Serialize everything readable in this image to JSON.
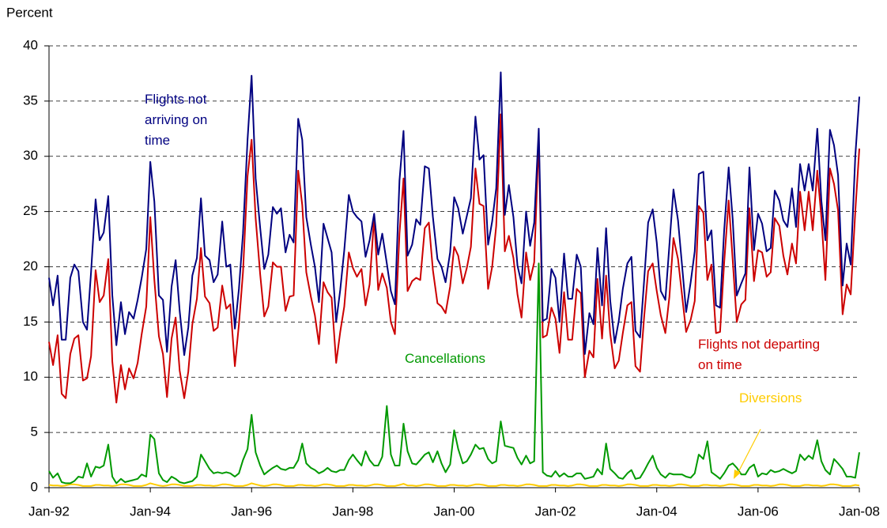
{
  "chart_data": {
    "type": "line",
    "y_label": "Percent",
    "xlim": [
      1992,
      2008
    ],
    "xticks": [
      {
        "value": 1992,
        "label": "Jan-92"
      },
      {
        "value": 1994,
        "label": "Jan-94"
      },
      {
        "value": 1996,
        "label": "Jan-96"
      },
      {
        "value": 1998,
        "label": "Jan-98"
      },
      {
        "value": 2000,
        "label": "Jan-00"
      },
      {
        "value": 2002,
        "label": "Jan-02"
      },
      {
        "value": 2004,
        "label": "Jan-04"
      },
      {
        "value": 2006,
        "label": "Jan-06"
      },
      {
        "value": 2008,
        "label": "Jan-08"
      }
    ],
    "ylim": [
      0,
      40
    ],
    "yticks": [
      0,
      5,
      10,
      15,
      20,
      25,
      30,
      35,
      40
    ],
    "grid": true,
    "x": [
      1992,
      1992.08,
      1992.17,
      1992.25,
      1992.33,
      1992.42,
      1992.5,
      1992.58,
      1992.67,
      1992.75,
      1992.83,
      1992.92,
      1993,
      1993.08,
      1993.17,
      1993.25,
      1993.33,
      1993.42,
      1993.5,
      1993.58,
      1993.67,
      1993.75,
      1993.83,
      1993.92,
      1994,
      1994.08,
      1994.17,
      1994.25,
      1994.33,
      1994.42,
      1994.5,
      1994.58,
      1994.67,
      1994.75,
      1994.83,
      1994.92,
      1995,
      1995.08,
      1995.17,
      1995.25,
      1995.33,
      1995.42,
      1995.5,
      1995.58,
      1995.67,
      1995.75,
      1995.83,
      1995.92,
      1996,
      1996.08,
      1996.17,
      1996.25,
      1996.33,
      1996.42,
      1996.5,
      1996.58,
      1996.67,
      1996.75,
      1996.83,
      1996.92,
      1997,
      1997.08,
      1997.17,
      1997.25,
      1997.33,
      1997.42,
      1997.5,
      1997.58,
      1997.67,
      1997.75,
      1997.83,
      1997.92,
      1998,
      1998.08,
      1998.17,
      1998.25,
      1998.33,
      1998.42,
      1998.5,
      1998.58,
      1998.67,
      1998.75,
      1998.83,
      1998.92,
      1999,
      1999.08,
      1999.17,
      1999.25,
      1999.33,
      1999.42,
      1999.5,
      1999.58,
      1999.67,
      1999.75,
      1999.83,
      1999.92,
      2000,
      2000.08,
      2000.17,
      2000.25,
      2000.33,
      2000.42,
      2000.5,
      2000.58,
      2000.67,
      2000.75,
      2000.83,
      2000.92,
      2001,
      2001.08,
      2001.17,
      2001.25,
      2001.33,
      2001.42,
      2001.5,
      2001.58,
      2001.67,
      2001.75,
      2001.83,
      2001.92,
      2002,
      2002.08,
      2002.17,
      2002.25,
      2002.33,
      2002.42,
      2002.5,
      2002.58,
      2002.67,
      2002.75,
      2002.83,
      2002.92,
      2003,
      2003.08,
      2003.17,
      2003.25,
      2003.33,
      2003.42,
      2003.5,
      2003.58,
      2003.67,
      2003.75,
      2003.83,
      2003.92,
      2004,
      2004.08,
      2004.17,
      2004.25,
      2004.33,
      2004.42,
      2004.5,
      2004.58,
      2004.67,
      2004.75,
      2004.83,
      2004.92,
      2005,
      2005.08,
      2005.17,
      2005.25,
      2005.33,
      2005.42,
      2005.5,
      2005.58,
      2005.67,
      2005.75,
      2005.83,
      2005.92,
      2006,
      2006.08,
      2006.17,
      2006.25,
      2006.33,
      2006.42,
      2006.5,
      2006.58,
      2006.67,
      2006.75,
      2006.83,
      2006.92,
      2007,
      2007.08,
      2007.17,
      2007.25,
      2007.33,
      2007.42,
      2007.5,
      2007.58,
      2007.67,
      2007.75,
      2007.83,
      2007.92,
      2008
    ],
    "series": [
      {
        "name": "Flights not arriving on time",
        "color": "#000080",
        "values": [
          19,
          16.5,
          19.2,
          13.4,
          13.4,
          19,
          20.2,
          19.6,
          15,
          14.3,
          19.5,
          26.1,
          22.4,
          23.1,
          26.4,
          17.4,
          12.9,
          16.8,
          13.9,
          15.9,
          15.3,
          17,
          19,
          21.6,
          29.5,
          25.9,
          17.4,
          17,
          12.3,
          18.2,
          20.6,
          16,
          12,
          14.5,
          19.2,
          20.8,
          26.2,
          21,
          20.6,
          18.6,
          19.3,
          24.1,
          20,
          20.2,
          14.4,
          18,
          23,
          31.5,
          37.3,
          28,
          23.5,
          19.8,
          21.1,
          25.4,
          24.8,
          25.3,
          21.3,
          22.9,
          22.2,
          33.4,
          31.5,
          24.5,
          22,
          20,
          16.8,
          23.9,
          22.6,
          21.3,
          15,
          17.9,
          21.5,
          26.5,
          25,
          24.5,
          24.1,
          20.9,
          22.4,
          24.8,
          21.1,
          23,
          20.3,
          17.8,
          16.6,
          27.8,
          32.3,
          21,
          22,
          24.3,
          23.8,
          29.1,
          28.9,
          24.5,
          20.7,
          20,
          18.6,
          21.3,
          26.3,
          25.3,
          23,
          24.6,
          26.2,
          33.6,
          29.7,
          30.1,
          22,
          24.1,
          27.1,
          37.6,
          24.7,
          27.4,
          24.5,
          20.1,
          18.5,
          25,
          21.9,
          24,
          32.5,
          15.1,
          15.3,
          19.8,
          19,
          15,
          21.2,
          17.1,
          17.1,
          21.1,
          20,
          12.1,
          15.8,
          14.8,
          21.7,
          16.5,
          23.5,
          17,
          13.1,
          15.1,
          18,
          20.3,
          20.9,
          14.2,
          13.6,
          18.7,
          24,
          25.2,
          22.2,
          17.8,
          17,
          22,
          27,
          24.2,
          20.1,
          15.9,
          18.6,
          21.4,
          28.4,
          28.6,
          22.4,
          23.3,
          16.5,
          16.3,
          23.2,
          29,
          24.3,
          17.4,
          18.5,
          19.4,
          29,
          21.5,
          24.8,
          23.9,
          21.4,
          21.7,
          26.9,
          26,
          24.2,
          23.6,
          27.1,
          23.6,
          29.3,
          26.9,
          29.3,
          26.9,
          32.5,
          26,
          22.4,
          32.4,
          31,
          28.3,
          18.3,
          22.1,
          20.2,
          30,
          35.4
        ]
      },
      {
        "name": "Flights not departing on time",
        "color": "#cc0000",
        "values": [
          13.2,
          11.1,
          13.8,
          8.5,
          8.1,
          12.1,
          13.5,
          13.8,
          9.7,
          9.9,
          11.9,
          19.7,
          16.8,
          17.4,
          20.7,
          11.4,
          7.7,
          11.1,
          8.9,
          10.8,
          9.9,
          11.3,
          13.9,
          16.4,
          24.5,
          18.8,
          13.7,
          12.1,
          8.2,
          13.5,
          15.4,
          10.6,
          8.1,
          10.5,
          14.8,
          17.1,
          21.7,
          17.3,
          16.7,
          14.2,
          14.5,
          18.3,
          16.2,
          16.6,
          11,
          14.8,
          19.5,
          28.2,
          31.5,
          24.4,
          19.3,
          15.5,
          16.4,
          20.4,
          20,
          20,
          16,
          17.3,
          17.4,
          28.7,
          25.6,
          19.5,
          17.3,
          15.6,
          13,
          18.6,
          17.7,
          17.2,
          11.3,
          14.1,
          16.4,
          21.3,
          19.9,
          19.1,
          19.8,
          16.5,
          18.4,
          24.5,
          17.9,
          19.4,
          18.1,
          15,
          13.9,
          23,
          28,
          17.8,
          18.7,
          19,
          18.8,
          23.5,
          24,
          19.7,
          16.7,
          16.4,
          15.8,
          18.2,
          21.8,
          21,
          18.5,
          19.9,
          21.8,
          28.9,
          25.7,
          25.5,
          18,
          20,
          23.7,
          33.8,
          21.4,
          22.8,
          20.8,
          17.5,
          15.4,
          21.3,
          18.8,
          20.4,
          31.6,
          13.6,
          13.8,
          16.3,
          15.3,
          12.2,
          17.7,
          13.4,
          13.4,
          18,
          17.6,
          10,
          12.4,
          11.8,
          18.9,
          13.5,
          19.2,
          14,
          10.8,
          11.5,
          14,
          16.5,
          16.8,
          11,
          10.5,
          15.4,
          19.6,
          20.3,
          17.8,
          15.6,
          14,
          17.3,
          22.6,
          20.7,
          17.4,
          14.1,
          15.2,
          16.9,
          25.5,
          24.9,
          18.8,
          20.2,
          14,
          14.1,
          20.3,
          26,
          20.6,
          15,
          16.6,
          17,
          25.3,
          18.7,
          21.5,
          21.3,
          19.1,
          19.5,
          24.4,
          23.7,
          21,
          19.3,
          22.1,
          20.3,
          26.8,
          23.3,
          26.8,
          23.3,
          28.7,
          24.5,
          18.8,
          28.9,
          27.5,
          25.1,
          15.7,
          18.4,
          17.5,
          25,
          30.7
        ]
      },
      {
        "name": "Cancellations",
        "color": "#009900",
        "values": [
          1.5,
          0.9,
          1.3,
          0.5,
          0.4,
          0.4,
          0.6,
          1,
          0.9,
          2.2,
          1,
          1.9,
          1.8,
          2,
          3.9,
          1,
          0.4,
          0.8,
          0.5,
          0.6,
          0.7,
          0.8,
          1.2,
          1,
          4.8,
          4.4,
          1.3,
          0.7,
          0.5,
          1,
          0.8,
          0.5,
          0.4,
          0.5,
          0.6,
          1,
          3,
          2.4,
          1.7,
          1.3,
          1.4,
          1.3,
          1.4,
          1.3,
          1,
          1.3,
          2.5,
          3.5,
          6.6,
          3.2,
          2,
          1.2,
          1.5,
          1.8,
          2,
          1.7,
          1.6,
          1.8,
          1.8,
          2.5,
          4,
          2.2,
          1.8,
          1.6,
          1.3,
          1.5,
          1.8,
          1.5,
          1.4,
          1.6,
          1.6,
          2.5,
          3,
          2.5,
          2,
          3.3,
          2.5,
          2,
          2,
          2.8,
          7.4,
          3,
          2,
          2,
          5.8,
          3.3,
          2.2,
          2.1,
          2.5,
          3,
          3.2,
          2.3,
          3.3,
          2.2,
          1.4,
          2.1,
          5.2,
          3.5,
          2.2,
          2.4,
          3,
          3.9,
          3.5,
          3.6,
          2.6,
          2.2,
          2.4,
          6,
          3.8,
          3.7,
          3.6,
          2.7,
          2.1,
          2.9,
          2.2,
          2.4,
          20.3,
          1.4,
          1.1,
          1,
          1.5,
          1,
          1.3,
          1,
          1,
          1.3,
          1.3,
          0.8,
          0.9,
          1,
          1.7,
          1.2,
          4,
          1.7,
          1.3,
          0.9,
          0.8,
          1.3,
          1.6,
          0.8,
          0.9,
          1.5,
          2.2,
          2.9,
          1.8,
          1.2,
          0.9,
          1.3,
          1.2,
          1.2,
          1.2,
          1,
          0.9,
          1.3,
          3,
          2.6,
          4.2,
          1.4,
          1.1,
          0.8,
          1.3,
          2,
          2.2,
          1.8,
          1.2,
          1.2,
          1.8,
          2.1,
          1,
          1.3,
          1.2,
          1.6,
          1.4,
          1.5,
          1.7,
          1.5,
          1.3,
          1.5,
          3,
          2.5,
          2.9,
          2.6,
          4.3,
          2.4,
          1.6,
          1.2,
          2.6,
          2.2,
          1.7,
          1,
          1,
          0.9,
          3.2
        ]
      },
      {
        "name": "Diversions",
        "color": "#ffcc00",
        "values": [
          0.25,
          0.2,
          0.2,
          0.15,
          0.2,
          0.3,
          0.3,
          0.25,
          0.15,
          0.15,
          0.15,
          0.25,
          0.25,
          0.2,
          0.2,
          0.15,
          0.2,
          0.3,
          0.3,
          0.25,
          0.15,
          0.15,
          0.15,
          0.25,
          0.4,
          0.3,
          0.2,
          0.15,
          0.2,
          0.3,
          0.3,
          0.25,
          0.15,
          0.15,
          0.15,
          0.25,
          0.25,
          0.2,
          0.2,
          0.15,
          0.2,
          0.3,
          0.3,
          0.25,
          0.15,
          0.15,
          0.15,
          0.25,
          0.4,
          0.3,
          0.2,
          0.15,
          0.2,
          0.3,
          0.3,
          0.25,
          0.15,
          0.15,
          0.15,
          0.25,
          0.25,
          0.2,
          0.2,
          0.15,
          0.2,
          0.3,
          0.3,
          0.25,
          0.15,
          0.15,
          0.15,
          0.25,
          0.25,
          0.2,
          0.2,
          0.15,
          0.2,
          0.3,
          0.3,
          0.25,
          0.15,
          0.15,
          0.15,
          0.25,
          0.35,
          0.2,
          0.2,
          0.15,
          0.2,
          0.3,
          0.3,
          0.25,
          0.15,
          0.15,
          0.15,
          0.25,
          0.25,
          0.2,
          0.2,
          0.15,
          0.2,
          0.3,
          0.3,
          0.25,
          0.15,
          0.15,
          0.15,
          0.25,
          0.25,
          0.2,
          0.2,
          0.15,
          0.2,
          0.3,
          0.3,
          0.25,
          0.15,
          0.15,
          0.15,
          0.25,
          0.25,
          0.2,
          0.2,
          0.15,
          0.2,
          0.3,
          0.3,
          0.25,
          0.15,
          0.15,
          0.15,
          0.25,
          0.25,
          0.2,
          0.2,
          0.15,
          0.2,
          0.3,
          0.3,
          0.25,
          0.15,
          0.15,
          0.15,
          0.25,
          0.25,
          0.2,
          0.2,
          0.15,
          0.2,
          0.3,
          0.3,
          0.25,
          0.15,
          0.15,
          0.15,
          0.25,
          0.25,
          0.2,
          0.2,
          0.15,
          0.2,
          0.3,
          0.3,
          0.25,
          0.15,
          0.15,
          0.15,
          0.25,
          0.25,
          0.2,
          0.2,
          0.15,
          0.2,
          0.3,
          0.3,
          0.25,
          0.15,
          0.15,
          0.15,
          0.25,
          0.25,
          0.2,
          0.2,
          0.15,
          0.2,
          0.3,
          0.3,
          0.25,
          0.15,
          0.15,
          0.15,
          0.25,
          0.2
        ]
      }
    ]
  }
}
